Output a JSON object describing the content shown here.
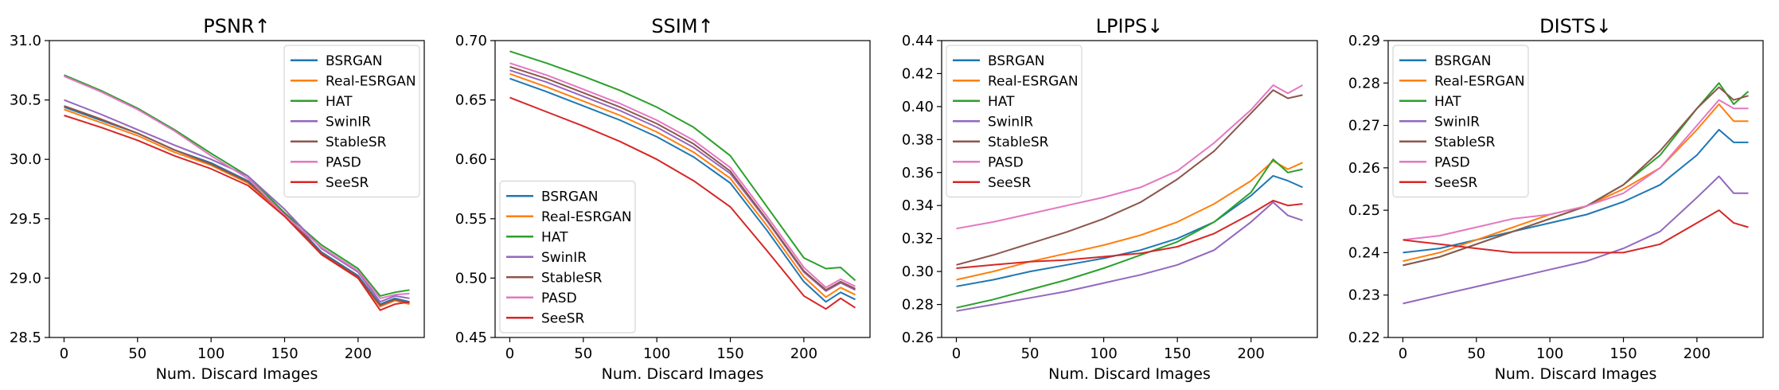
{
  "figure": {
    "xlabel": "Num. Discard Images"
  },
  "series_names": [
    "BSRGAN",
    "Real-ESRGAN",
    "HAT",
    "SwinIR",
    "StableSR",
    "PASD",
    "SeeSR"
  ],
  "colors": {
    "BSRGAN": "#1f77b4",
    "Real-ESRGAN": "#ff7f0e",
    "HAT": "#2ca02c",
    "SwinIR": "#9467bd",
    "StableSR": "#8c564b",
    "PASD": "#e377c2",
    "SeeSR": "#d62728"
  },
  "chart_data": [
    {
      "type": "line",
      "title": "PSNR↑",
      "xlabel": "Num. Discard Images",
      "xlim": [
        -10,
        245
      ],
      "ylim": [
        28.5,
        31.0
      ],
      "xticks": [
        0,
        50,
        100,
        150,
        200
      ],
      "yticks": [
        "28.5",
        "29.0",
        "29.5",
        "30.0",
        "30.5",
        "31.0"
      ],
      "legend_loc": "top-right",
      "x": [
        0,
        25,
        50,
        75,
        100,
        125,
        150,
        175,
        200,
        215,
        225,
        235
      ],
      "series": [
        {
          "name": "BSRGAN",
          "values": [
            30.44,
            30.33,
            30.22,
            30.08,
            29.97,
            29.82,
            29.55,
            29.22,
            29.02,
            28.78,
            28.83,
            28.8
          ]
        },
        {
          "name": "Real-ESRGAN",
          "values": [
            30.42,
            30.31,
            30.2,
            30.06,
            29.95,
            29.8,
            29.53,
            29.2,
            29.0,
            28.76,
            28.81,
            28.78
          ]
        },
        {
          "name": "HAT",
          "values": [
            30.71,
            30.58,
            30.43,
            30.25,
            30.05,
            29.86,
            29.55,
            29.28,
            29.08,
            28.85,
            28.88,
            28.9
          ]
        },
        {
          "name": "SwinIR",
          "values": [
            30.5,
            30.38,
            30.25,
            30.12,
            30.0,
            29.86,
            29.58,
            29.25,
            29.05,
            28.8,
            28.85,
            28.83
          ]
        },
        {
          "name": "StableSR",
          "values": [
            30.45,
            30.34,
            30.22,
            30.08,
            29.96,
            29.81,
            29.54,
            29.21,
            29.01,
            28.77,
            28.82,
            28.79
          ]
        },
        {
          "name": "PASD",
          "values": [
            30.7,
            30.57,
            30.42,
            30.24,
            30.03,
            29.84,
            29.53,
            29.26,
            29.06,
            28.83,
            28.86,
            28.87
          ]
        },
        {
          "name": "SeeSR",
          "values": [
            30.37,
            30.27,
            30.16,
            30.03,
            29.92,
            29.78,
            29.52,
            29.2,
            29.0,
            28.73,
            28.78,
            28.8
          ]
        }
      ]
    },
    {
      "type": "line",
      "title": "SSIM↑",
      "xlabel": "Num. Discard Images",
      "xlim": [
        -10,
        245
      ],
      "ylim": [
        0.45,
        0.7
      ],
      "xticks": [
        0,
        50,
        100,
        150,
        200
      ],
      "yticks": [
        "0.45",
        "0.50",
        "0.55",
        "0.60",
        "0.65",
        "0.70"
      ],
      "legend_loc": "bottom-left",
      "x": [
        0,
        25,
        50,
        75,
        100,
        125,
        150,
        175,
        200,
        215,
        225,
        235
      ],
      "series": [
        {
          "name": "BSRGAN",
          "values": [
            0.668,
            0.657,
            0.645,
            0.633,
            0.619,
            0.602,
            0.58,
            0.54,
            0.497,
            0.48,
            0.488,
            0.482
          ]
        },
        {
          "name": "Real-ESRGAN",
          "values": [
            0.672,
            0.661,
            0.649,
            0.637,
            0.623,
            0.606,
            0.584,
            0.544,
            0.501,
            0.484,
            0.492,
            0.486
          ]
        },
        {
          "name": "HAT",
          "values": [
            0.691,
            0.681,
            0.67,
            0.658,
            0.644,
            0.627,
            0.603,
            0.56,
            0.517,
            0.508,
            0.509,
            0.498
          ]
        },
        {
          "name": "SwinIR",
          "values": [
            0.675,
            0.665,
            0.653,
            0.641,
            0.627,
            0.61,
            0.588,
            0.548,
            0.505,
            0.489,
            0.496,
            0.49
          ]
        },
        {
          "name": "StableSR",
          "values": [
            0.678,
            0.668,
            0.656,
            0.644,
            0.63,
            0.613,
            0.59,
            0.549,
            0.506,
            0.49,
            0.497,
            0.491
          ]
        },
        {
          "name": "PASD",
          "values": [
            0.681,
            0.671,
            0.659,
            0.647,
            0.633,
            0.616,
            0.593,
            0.552,
            0.509,
            0.492,
            0.499,
            0.493
          ]
        },
        {
          "name": "SeeSR",
          "values": [
            0.652,
            0.64,
            0.628,
            0.615,
            0.6,
            0.582,
            0.56,
            0.523,
            0.485,
            0.474,
            0.483,
            0.475
          ]
        }
      ]
    },
    {
      "type": "line",
      "title": "LPIPS↓",
      "xlabel": "Num. Discard Images",
      "xlim": [
        -10,
        245
      ],
      "ylim": [
        0.26,
        0.44
      ],
      "xticks": [
        0,
        50,
        100,
        150,
        200
      ],
      "yticks": [
        "0.26",
        "0.28",
        "0.30",
        "0.32",
        "0.34",
        "0.36",
        "0.38",
        "0.40",
        "0.42",
        "0.44"
      ],
      "legend_loc": "top-left",
      "x": [
        0,
        25,
        50,
        75,
        100,
        125,
        150,
        175,
        200,
        215,
        225,
        235
      ],
      "series": [
        {
          "name": "BSRGAN",
          "values": [
            0.291,
            0.295,
            0.3,
            0.304,
            0.308,
            0.313,
            0.32,
            0.33,
            0.346,
            0.358,
            0.355,
            0.351
          ]
        },
        {
          "name": "Real-ESRGAN",
          "values": [
            0.295,
            0.3,
            0.306,
            0.311,
            0.316,
            0.322,
            0.33,
            0.341,
            0.355,
            0.367,
            0.362,
            0.366
          ]
        },
        {
          "name": "HAT",
          "values": [
            0.278,
            0.283,
            0.289,
            0.295,
            0.302,
            0.31,
            0.318,
            0.33,
            0.348,
            0.368,
            0.36,
            0.362
          ]
        },
        {
          "name": "SwinIR",
          "values": [
            0.276,
            0.28,
            0.284,
            0.288,
            0.293,
            0.298,
            0.304,
            0.313,
            0.33,
            0.342,
            0.334,
            0.331
          ]
        },
        {
          "name": "StableSR",
          "values": [
            0.304,
            0.31,
            0.317,
            0.324,
            0.332,
            0.342,
            0.356,
            0.373,
            0.396,
            0.41,
            0.405,
            0.407
          ]
        },
        {
          "name": "PASD",
          "values": [
            0.326,
            0.33,
            0.335,
            0.34,
            0.345,
            0.351,
            0.361,
            0.378,
            0.398,
            0.413,
            0.408,
            0.413
          ]
        },
        {
          "name": "SeeSR",
          "values": [
            0.302,
            0.304,
            0.306,
            0.307,
            0.309,
            0.311,
            0.315,
            0.323,
            0.335,
            0.343,
            0.34,
            0.341
          ]
        }
      ]
    },
    {
      "type": "line",
      "title": "DISTS↓",
      "xlabel": "Num. Discard Images",
      "xlim": [
        -10,
        245
      ],
      "ylim": [
        0.22,
        0.29
      ],
      "xticks": [
        0,
        50,
        100,
        150,
        200
      ],
      "yticks": [
        "0.22",
        "0.23",
        "0.24",
        "0.25",
        "0.26",
        "0.27",
        "0.28",
        "0.29"
      ],
      "legend_loc": "top-left",
      "x": [
        0,
        25,
        50,
        75,
        100,
        125,
        150,
        175,
        200,
        215,
        225,
        235
      ],
      "series": [
        {
          "name": "BSRGAN",
          "values": [
            0.24,
            0.241,
            0.243,
            0.245,
            0.247,
            0.249,
            0.252,
            0.256,
            0.263,
            0.269,
            0.266,
            0.266
          ]
        },
        {
          "name": "Real-ESRGAN",
          "values": [
            0.238,
            0.24,
            0.243,
            0.246,
            0.249,
            0.251,
            0.255,
            0.26,
            0.269,
            0.275,
            0.271,
            0.271
          ]
        },
        {
          "name": "HAT",
          "values": [
            0.237,
            0.239,
            0.242,
            0.245,
            0.248,
            0.251,
            0.256,
            0.263,
            0.274,
            0.28,
            0.275,
            0.278
          ]
        },
        {
          "name": "SwinIR",
          "values": [
            0.228,
            0.23,
            0.232,
            0.234,
            0.236,
            0.238,
            0.241,
            0.245,
            0.253,
            0.258,
            0.254,
            0.254
          ]
        },
        {
          "name": "StableSR",
          "values": [
            0.237,
            0.239,
            0.242,
            0.245,
            0.248,
            0.251,
            0.256,
            0.264,
            0.274,
            0.279,
            0.276,
            0.277
          ]
        },
        {
          "name": "PASD",
          "values": [
            0.243,
            0.244,
            0.246,
            0.248,
            0.249,
            0.251,
            0.254,
            0.26,
            0.27,
            0.276,
            0.274,
            0.274
          ]
        },
        {
          "name": "SeeSR",
          "values": [
            0.243,
            0.242,
            0.241,
            0.24,
            0.24,
            0.24,
            0.24,
            0.242,
            0.247,
            0.25,
            0.247,
            0.246
          ]
        }
      ]
    }
  ]
}
